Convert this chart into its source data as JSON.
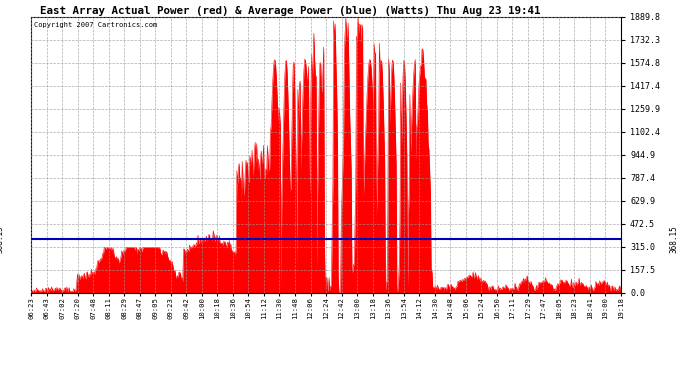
{
  "title": "East Array Actual Power (red) & Average Power (blue) (Watts) Thu Aug 23 19:41",
  "copyright_text": "Copyright 2007 Cartronics.com",
  "average_power": 368.15,
  "y_max": 1889.8,
  "y_min": 0.0,
  "y_ticks": [
    0.0,
    157.5,
    315.0,
    472.5,
    629.9,
    787.4,
    944.9,
    1102.4,
    1259.9,
    1417.4,
    1574.8,
    1732.3,
    1889.8
  ],
  "background_color": "#ffffff",
  "plot_bg_color": "#ffffff",
  "grid_color": "#999999",
  "fill_color": "#ff0000",
  "line_color": "#ff0000",
  "avg_line_color": "#0000bb",
  "x_labels": [
    "06:23",
    "06:43",
    "07:02",
    "07:20",
    "07:48",
    "08:11",
    "08:29",
    "08:47",
    "09:05",
    "09:23",
    "09:42",
    "10:00",
    "10:18",
    "10:36",
    "10:54",
    "11:12",
    "11:30",
    "11:48",
    "12:06",
    "12:24",
    "12:42",
    "13:00",
    "13:18",
    "13:36",
    "13:54",
    "14:12",
    "14:30",
    "14:48",
    "15:06",
    "15:24",
    "16:50",
    "17:11",
    "17:29",
    "17:47",
    "18:05",
    "18:23",
    "18:41",
    "19:00",
    "19:18"
  ]
}
